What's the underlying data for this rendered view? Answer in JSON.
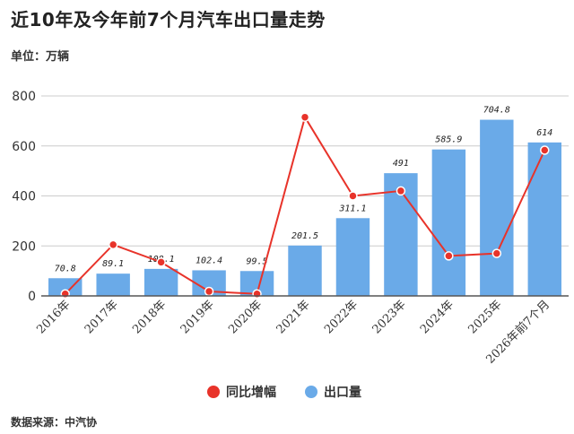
{
  "title": "近10年及今年前7个月汽车出口量走势",
  "unit_label": "单位：万辆",
  "source": "数据来源：中汽协",
  "colors": {
    "bar": "#6aaae8",
    "line": "#e8332a",
    "grid": "#cccccc",
    "axis": "#555555"
  },
  "chart_data": {
    "type": "bar",
    "categories": [
      "2016年",
      "2017年",
      "2018年",
      "2019年",
      "2020年",
      "2021年",
      "2022年",
      "2023年",
      "2024年",
      "2025年",
      "2026年前7个月"
    ],
    "ylim": [
      0,
      800
    ],
    "yticks": [
      0,
      200,
      400,
      600,
      800
    ],
    "grid": true,
    "legend_position": "bottom",
    "series": [
      {
        "name": "出口量",
        "type": "bar",
        "values": [
          70.8,
          89.1,
          108.1,
          102.4,
          99.5,
          201.5,
          311.1,
          491,
          585.9,
          704.8,
          614
        ],
        "labels": [
          "70.8",
          "89.1",
          "108.1",
          "102.4",
          "99.5",
          "201.5",
          "311.1",
          "491",
          "585.9",
          "704.8",
          "614"
        ]
      },
      {
        "name": "同比增幅",
        "type": "line",
        "values": [
          8,
          205,
          135,
          18,
          8,
          715,
          400,
          420,
          160,
          170,
          583
        ]
      }
    ]
  }
}
